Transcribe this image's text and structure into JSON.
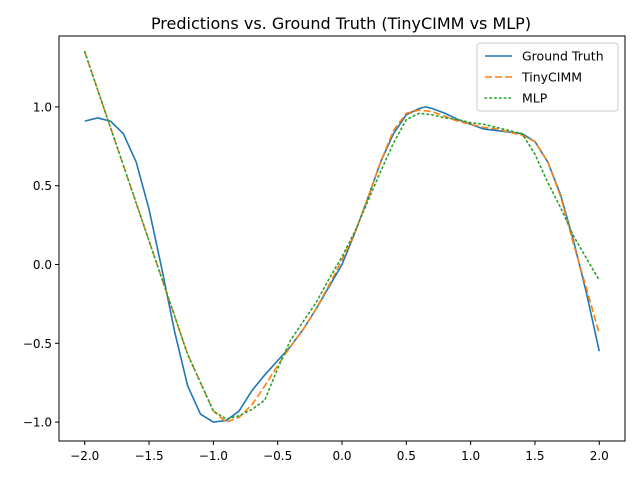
{
  "chart_data": {
    "type": "line",
    "title": "Predictions vs. Ground Truth (TinyCIMM vs MLP)",
    "xlabel": "",
    "ylabel": "",
    "xlim": [
      -2.2,
      2.2
    ],
    "ylim": [
      -1.12,
      1.45
    ],
    "xticks": [
      -2.0,
      -1.5,
      -1.0,
      -0.5,
      0.0,
      0.5,
      1.0,
      1.5,
      2.0
    ],
    "xtick_labels": [
      "−2.0",
      "−1.5",
      "−1.0",
      "−0.5",
      "0.0",
      "0.5",
      "1.0",
      "1.5",
      "2.0"
    ],
    "yticks": [
      -1.0,
      -0.5,
      0.0,
      0.5,
      1.0
    ],
    "ytick_labels": [
      "−1.0",
      "−0.5",
      "0.0",
      "0.5",
      "1.0"
    ],
    "grid": false,
    "legend_position": "top-right",
    "series": [
      {
        "name": "Ground Truth",
        "color": "#1f77b4",
        "style": "solid",
        "x": [
          -2.0,
          -1.9,
          -1.8,
          -1.7,
          -1.6,
          -1.5,
          -1.4,
          -1.3,
          -1.2,
          -1.1,
          -1.0,
          -0.9,
          -0.8,
          -0.7,
          -0.6,
          -0.5,
          -0.4,
          -0.3,
          -0.2,
          -0.1,
          0.0,
          0.1,
          0.2,
          0.3,
          0.4,
          0.5,
          0.6,
          0.65,
          0.7,
          0.8,
          0.9,
          1.0,
          1.1,
          1.2,
          1.3,
          1.4,
          1.5,
          1.6,
          1.7,
          1.8,
          1.9,
          2.0
        ],
        "y": [
          0.91,
          0.93,
          0.91,
          0.83,
          0.65,
          0.35,
          -0.03,
          -0.43,
          -0.77,
          -0.95,
          -1.0,
          -0.99,
          -0.93,
          -0.8,
          -0.7,
          -0.61,
          -0.52,
          -0.41,
          -0.28,
          -0.14,
          0.0,
          0.2,
          0.42,
          0.65,
          0.83,
          0.95,
          0.99,
          1.0,
          0.99,
          0.96,
          0.92,
          0.89,
          0.86,
          0.85,
          0.84,
          0.83,
          0.78,
          0.65,
          0.44,
          0.15,
          -0.18,
          -0.55
        ]
      },
      {
        "name": "TinyCIMM",
        "color": "#ff7f0e",
        "style": "dashed",
        "x": [
          -2.0,
          -1.8,
          -1.6,
          -1.4,
          -1.2,
          -1.0,
          -0.9,
          -0.8,
          -0.7,
          -0.6,
          -0.5,
          -0.4,
          -0.3,
          -0.2,
          -0.1,
          0.0,
          0.1,
          0.2,
          0.3,
          0.4,
          0.5,
          0.6,
          0.7,
          0.8,
          0.9,
          1.0,
          1.1,
          1.2,
          1.3,
          1.4,
          1.5,
          1.6,
          1.7,
          1.8,
          1.9,
          2.0
        ],
        "y": [
          1.35,
          0.87,
          0.39,
          -0.09,
          -0.57,
          -0.93,
          -1.0,
          -0.97,
          -0.89,
          -0.77,
          -0.64,
          -0.52,
          -0.41,
          -0.28,
          -0.13,
          0.03,
          0.2,
          0.42,
          0.65,
          0.85,
          0.96,
          0.98,
          0.97,
          0.94,
          0.91,
          0.89,
          0.87,
          0.86,
          0.84,
          0.82,
          0.78,
          0.65,
          0.43,
          0.13,
          -0.15,
          -0.44
        ]
      },
      {
        "name": "MLP",
        "color": "#2ca02c",
        "style": "dotted",
        "x": [
          -2.0,
          -1.8,
          -1.6,
          -1.4,
          -1.2,
          -1.0,
          -0.9,
          -0.8,
          -0.7,
          -0.6,
          -0.5,
          -0.4,
          -0.3,
          -0.2,
          -0.1,
          0.0,
          0.1,
          0.2,
          0.3,
          0.4,
          0.5,
          0.6,
          0.7,
          0.8,
          0.9,
          1.0,
          1.1,
          1.2,
          1.3,
          1.4,
          1.5,
          1.6,
          1.7,
          1.8,
          1.9,
          2.0
        ],
        "y": [
          1.35,
          0.87,
          0.39,
          -0.09,
          -0.57,
          -0.93,
          -0.98,
          -0.96,
          -0.92,
          -0.86,
          -0.66,
          -0.48,
          -0.36,
          -0.24,
          -0.09,
          0.05,
          0.21,
          0.4,
          0.59,
          0.77,
          0.92,
          0.96,
          0.95,
          0.93,
          0.92,
          0.9,
          0.89,
          0.87,
          0.85,
          0.83,
          0.7,
          0.52,
          0.36,
          0.18,
          0.04,
          -0.1
        ]
      }
    ]
  }
}
